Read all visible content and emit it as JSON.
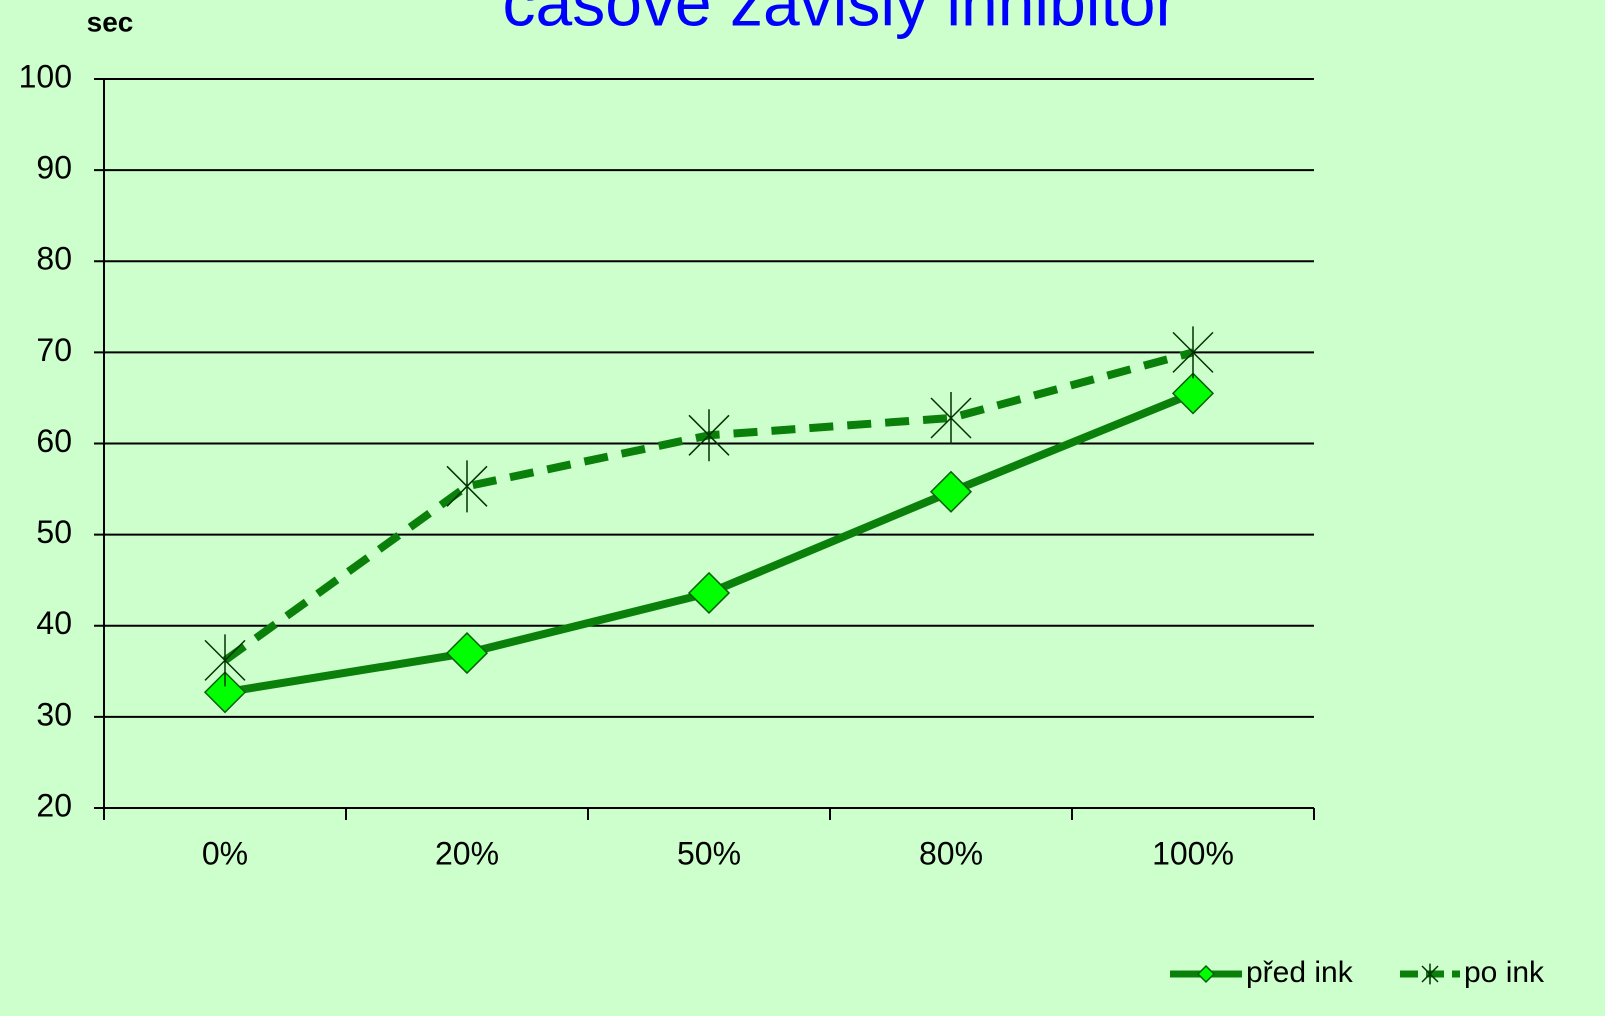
{
  "chart_data": {
    "type": "line",
    "title": "časově závislý inhibitor",
    "y_label": "sec",
    "categories": [
      "0%",
      "20%",
      "50%",
      "80%",
      "100%"
    ],
    "series": [
      {
        "name": "před ink",
        "color": "#0a800a",
        "marker_color": "#00ff00",
        "dashed": false,
        "marker": "diamond",
        "values": [
          32.7,
          37,
          43.6,
          54.7,
          65.5
        ]
      },
      {
        "name": "po ink",
        "color": "#0a800a",
        "marker_color": "#0a800a",
        "dashed": true,
        "marker": "star",
        "values": [
          36.2,
          55.3,
          60.9,
          62.8,
          70
        ]
      }
    ],
    "ylim": [
      20,
      100
    ],
    "yticks": [
      20,
      30,
      40,
      50,
      60,
      70,
      80,
      90,
      100
    ],
    "grid": true,
    "legend": "bottom-right"
  }
}
